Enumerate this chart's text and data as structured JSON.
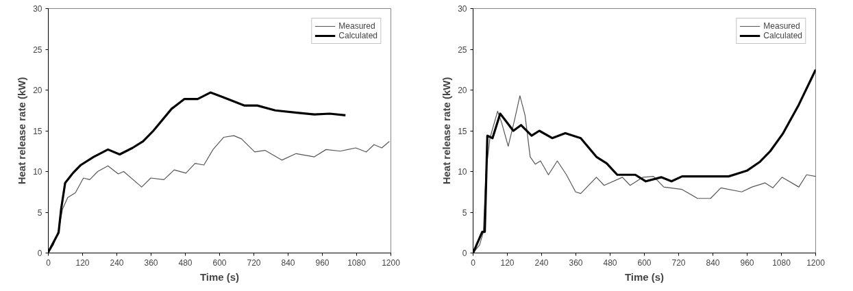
{
  "chart_data": [
    {
      "type": "line",
      "xlabel": "Time (s)",
      "ylabel": "Heat release rate (kW)",
      "xlim": [
        0,
        1200
      ],
      "ylim": [
        0,
        30
      ],
      "xticks": [
        0,
        120,
        240,
        360,
        480,
        600,
        720,
        840,
        960,
        1080,
        1200
      ],
      "yticks": [
        0,
        5,
        10,
        15,
        20,
        25,
        30
      ],
      "grid": false,
      "legend": "top right",
      "series": [
        {
          "name": "Measured",
          "color": "#555555",
          "x": [
            0,
            18,
            36,
            50,
            68,
            95,
            123,
            145,
            173,
            209,
            245,
            264,
            327,
            359,
            405,
            441,
            482,
            514,
            545,
            577,
            614,
            650,
            677,
            723,
            759,
            818,
            868,
            932,
            973,
            1023,
            1077,
            1114,
            1141,
            1168,
            1195
          ],
          "values": [
            0.1,
            1,
            2.8,
            5.4,
            6.8,
            7.4,
            9.2,
            9,
            10,
            10.7,
            9.7,
            10,
            8.1,
            9.2,
            9,
            10.2,
            9.8,
            11,
            10.8,
            12.7,
            14.2,
            14.4,
            14,
            12.4,
            12.6,
            11.4,
            12.2,
            11.8,
            12.7,
            12.5,
            12.9,
            12.4,
            13.3,
            12.9,
            13.7
          ]
        },
        {
          "name": "Calculated",
          "color": "#000000",
          "x": [
            0,
            36,
            45,
            59,
            86,
            114,
            159,
            209,
            250,
            295,
            332,
            368,
            432,
            477,
            523,
            568,
            614,
            686,
            732,
            795,
            877,
            932,
            986,
            1041
          ],
          "values": [
            0.1,
            2.5,
            5.4,
            8.6,
            9.8,
            10.8,
            11.8,
            12.7,
            12.1,
            12.9,
            13.7,
            15,
            17.7,
            18.9,
            18.9,
            19.7,
            19.1,
            18.1,
            18.1,
            17.5,
            17.2,
            17,
            17.1,
            16.9
          ]
        }
      ]
    },
    {
      "type": "line",
      "xlabel": "Time (s)",
      "ylabel": "Heat release rate (kW)",
      "xlim": [
        0,
        1200
      ],
      "ylim": [
        0,
        30
      ],
      "xticks": [
        0,
        120,
        240,
        360,
        480,
        600,
        720,
        840,
        960,
        1080,
        1200
      ],
      "yticks": [
        0,
        5,
        10,
        15,
        20,
        25,
        30
      ],
      "grid": false,
      "legend": "top right",
      "series": [
        {
          "name": "Measured",
          "color": "#555555",
          "x": [
            0,
            23,
            36,
            45,
            59,
            86,
            100,
            123,
            145,
            164,
            182,
            200,
            218,
            236,
            264,
            295,
            327,
            359,
            377,
            432,
            459,
            523,
            550,
            595,
            632,
            668,
            732,
            786,
            832,
            868,
            941,
            977,
            1023,
            1050,
            1082,
            1141,
            1168,
            1200
          ],
          "values": [
            0,
            1,
            2.6,
            9.9,
            14.1,
            17.4,
            16,
            13.1,
            16.3,
            19.3,
            16.9,
            11.8,
            10.9,
            11.3,
            9.6,
            11.3,
            9.6,
            7.5,
            7.3,
            9.3,
            8.3,
            9.3,
            8.3,
            9.3,
            9.4,
            8.1,
            7.8,
            6.7,
            6.7,
            8,
            7.5,
            8.1,
            8.6,
            8,
            9.3,
            8.1,
            9.6,
            9.4
          ]
        },
        {
          "name": "Calculated",
          "color": "#000000",
          "x": [
            0,
            32,
            41,
            50,
            68,
            95,
            141,
            168,
            205,
            232,
            277,
            323,
            377,
            432,
            468,
            505,
            568,
            605,
            659,
            695,
            732,
            795,
            895,
            959,
            1005,
            1041,
            1086,
            1141,
            1200
          ],
          "values": [
            0,
            2.6,
            2.6,
            14.4,
            14.1,
            17.1,
            15,
            15.7,
            14.4,
            15,
            14.1,
            14.7,
            14.1,
            11.8,
            11,
            9.6,
            9.6,
            8.8,
            9.3,
            8.8,
            9.4,
            9.4,
            9.4,
            10.1,
            11.2,
            12.5,
            14.7,
            18.2,
            22.5
          ]
        }
      ]
    }
  ]
}
